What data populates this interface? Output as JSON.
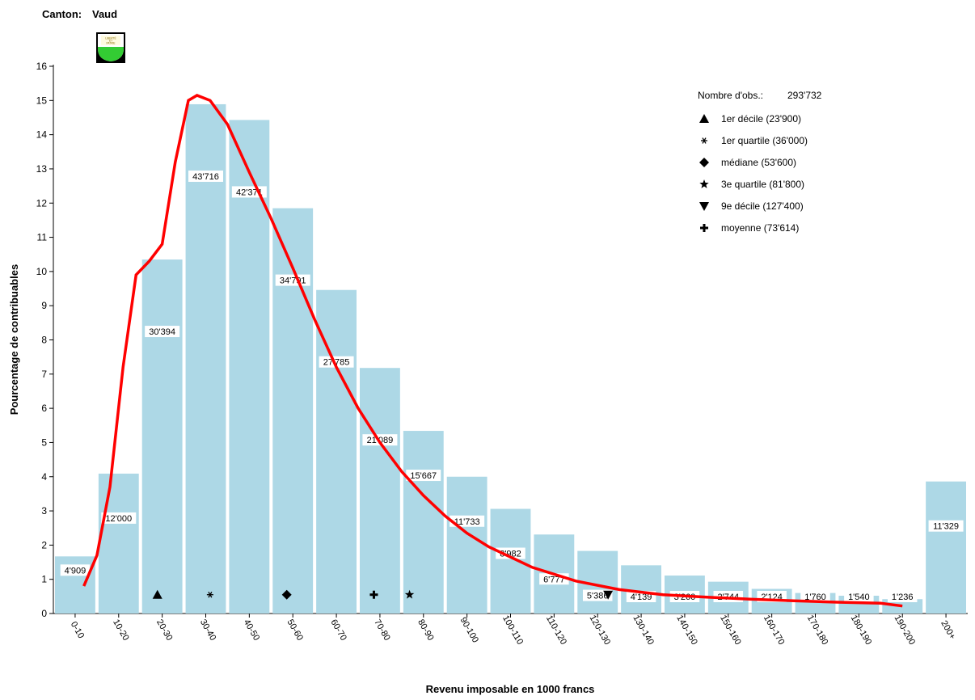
{
  "header": {
    "canton_label": "Canton:",
    "canton_value": "Vaud",
    "crest_text": "LIBERTÉ ET PATRIE"
  },
  "chart_data": {
    "type": "bar",
    "xlabel": "Revenu imposable en 1000 francs",
    "ylabel": "Pourcentage de contribuables",
    "ylim": [
      0,
      16
    ],
    "yticks": [
      0,
      1,
      2,
      3,
      4,
      5,
      6,
      7,
      8,
      9,
      10,
      11,
      12,
      13,
      14,
      15,
      16
    ],
    "categories": [
      "0-10",
      "10-20",
      "20-30",
      "30-40",
      "40-50",
      "50-60",
      "60-70",
      "70-80",
      "80-90",
      "90-100",
      "100-110",
      "110-120",
      "120-130",
      "130-140",
      "140-150",
      "150-160",
      "160-170",
      "170-180",
      "180-190",
      "190-200",
      "200+"
    ],
    "values": [
      1.67,
      4.09,
      10.35,
      14.89,
      14.43,
      11.85,
      9.46,
      7.18,
      5.34,
      4.0,
      3.06,
      2.31,
      1.83,
      1.41,
      1.11,
      0.93,
      0.72,
      0.6,
      0.52,
      0.42,
      3.86
    ],
    "counts": [
      "4'909",
      "12'000",
      "30'394",
      "43'716",
      "42'371",
      "34'791",
      "27'785",
      "21'089",
      "15'667",
      "11'733",
      "8'982",
      "6'777",
      "5'386",
      "4'139",
      "3'260",
      "2'744",
      "2'124",
      "1'760",
      "1'540",
      "1'236",
      "11'329"
    ],
    "bar_color": "#add8e6",
    "curve_color": "#ff0000",
    "curve": {
      "x": [
        0.7,
        1.0,
        1.3,
        1.6,
        1.9,
        2.2,
        2.5,
        2.8,
        3.1,
        3.3,
        3.6,
        4.0,
        4.5,
        5.0,
        5.5,
        6.0,
        6.5,
        7.0,
        7.5,
        8.0,
        8.5,
        9.0,
        9.5,
        10.0,
        11.0,
        12.0,
        13.0,
        14.0,
        15.0,
        16.0,
        17.0,
        18.0,
        19.0,
        19.5
      ],
      "y": [
        0.8,
        1.7,
        3.7,
        7.2,
        9.9,
        10.3,
        10.8,
        13.2,
        15.0,
        15.15,
        15.0,
        14.3,
        12.9,
        11.55,
        10.1,
        8.6,
        7.2,
        6.0,
        5.0,
        4.15,
        3.45,
        2.85,
        2.35,
        1.95,
        1.35,
        0.95,
        0.7,
        0.55,
        0.48,
        0.42,
        0.37,
        0.33,
        0.3,
        0.22
      ]
    },
    "markers": [
      {
        "symbol": "triangle-up",
        "x": 23.9
      },
      {
        "symbol": "asterisk",
        "x": 36.0
      },
      {
        "symbol": "diamond",
        "x": 53.6
      },
      {
        "symbol": "star",
        "x": 81.8
      },
      {
        "symbol": "triangle-down",
        "x": 127.4
      },
      {
        "symbol": "plus",
        "x": 73.614
      }
    ],
    "legend": {
      "placement": "top-right",
      "obs_label": "Nombre d'obs.:",
      "obs_value": "293'732",
      "items": [
        {
          "symbol": "triangle-up",
          "label": "1er décile (23'900)"
        },
        {
          "symbol": "asterisk",
          "label": "1er quartile (36'000)"
        },
        {
          "symbol": "diamond",
          "label": "médiane (53'600)"
        },
        {
          "symbol": "star",
          "label": "3e quartile (81'800)"
        },
        {
          "symbol": "triangle-down",
          "label": "9e décile (127'400)"
        },
        {
          "symbol": "plus",
          "label": "moyenne (73'614)"
        }
      ]
    }
  }
}
